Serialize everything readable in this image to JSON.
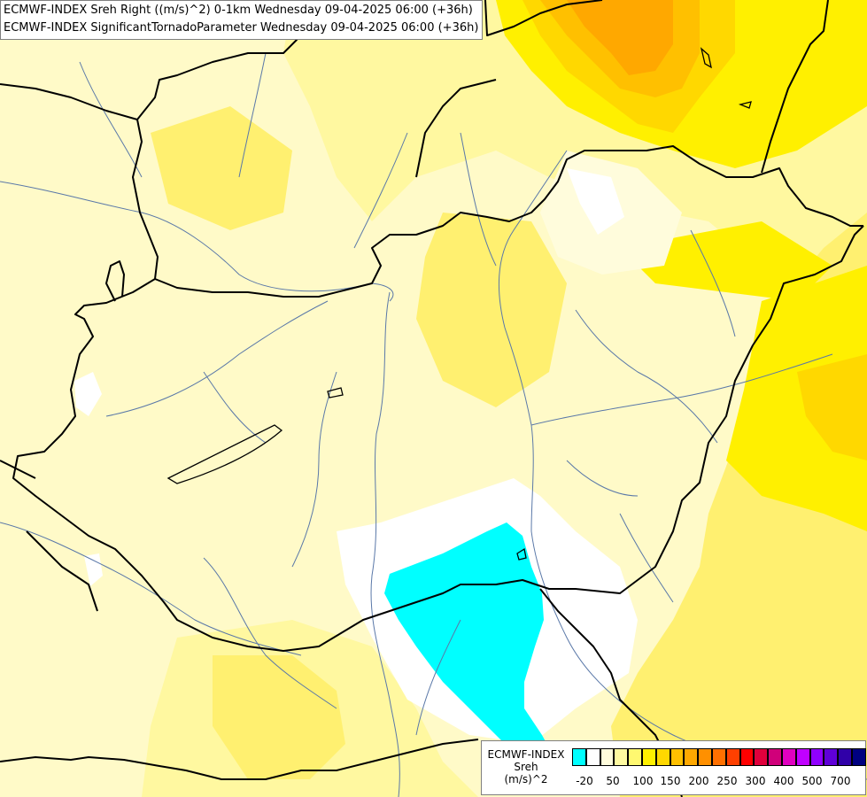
{
  "header": {
    "line1": "ECMWF-INDEX Sreh Right ((m/s)^2) 0-1km Wednesday 09-04-2025 06:00 (+36h)",
    "line2": "ECMWF-INDEX SignificantTornadoParameter Wednesday 09-04-2025 06:00 (+36h)"
  },
  "legend": {
    "title1": "ECMWF-INDEX",
    "title2": "Sreh",
    "title3": "(m/s)^2",
    "colors": [
      "#00ffff",
      "#ffffff",
      "#fffcdc",
      "#fffaa0",
      "#fff870",
      "#fff000",
      "#ffd800",
      "#ffc000",
      "#ffa800",
      "#ff9000",
      "#ff7000",
      "#ff4000",
      "#ff0000",
      "#e0003c",
      "#d0007a",
      "#e000c0",
      "#c000ff",
      "#9000ff",
      "#6000d8",
      "#3000a8",
      "#000080"
    ],
    "ticks": [
      "-20",
      "50",
      "100",
      "150",
      "200",
      "250",
      "300",
      "400",
      "500",
      "700"
    ]
  },
  "map_colors": {
    "background": "#fffac8",
    "light_yellow": "#fff8a0",
    "yellow": "#fff070",
    "bright_yellow": "#fff000",
    "gold": "#ffd800",
    "amber": "#ffc000",
    "orange": "#ffa800",
    "white": "#ffffff",
    "cyan": "#00ffff",
    "border": "#000000",
    "river": "#5a78a8"
  }
}
